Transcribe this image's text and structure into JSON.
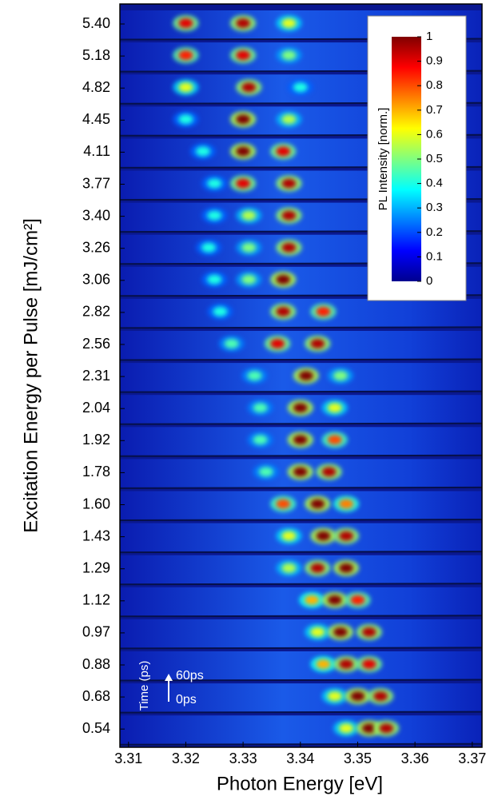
{
  "chart_data": {
    "type": "streak-heatmap",
    "xlabel": "Photon Energy [eV]",
    "ylabel": "Excitation Energy per Pulse [mJ/cm²]",
    "xlim": [
      3.3085,
      3.3717
    ],
    "xticks": [
      3.31,
      3.32,
      3.33,
      3.34,
      3.35,
      3.36,
      3.37
    ],
    "categories": [
      "5.40",
      "5.18",
      "4.82",
      "4.45",
      "4.11",
      "3.77",
      "3.40",
      "3.26",
      "3.06",
      "2.82",
      "2.56",
      "2.31",
      "2.04",
      "1.92",
      "1.78",
      "1.60",
      "1.43",
      "1.29",
      "1.12",
      "0.97",
      "0.88",
      "0.68",
      "0.54"
    ],
    "spots": [
      [
        {
          "energy": 3.32,
          "intensity": 0.9
        },
        {
          "energy": 3.33,
          "intensity": 0.95
        },
        {
          "energy": 3.338,
          "intensity": 0.6
        }
      ],
      [
        {
          "energy": 3.32,
          "intensity": 0.85
        },
        {
          "energy": 3.33,
          "intensity": 0.9
        },
        {
          "energy": 3.338,
          "intensity": 0.5
        }
      ],
      [
        {
          "energy": 3.32,
          "intensity": 0.6
        },
        {
          "energy": 3.331,
          "intensity": 0.95
        },
        {
          "energy": 3.34,
          "intensity": 0.4
        }
      ],
      [
        {
          "energy": 3.32,
          "intensity": 0.4
        },
        {
          "energy": 3.33,
          "intensity": 1
        },
        {
          "energy": 3.338,
          "intensity": 0.55
        }
      ],
      [
        {
          "energy": 3.323,
          "intensity": 0.4
        },
        {
          "energy": 3.33,
          "intensity": 1
        },
        {
          "energy": 3.337,
          "intensity": 0.9
        }
      ],
      [
        {
          "energy": 3.325,
          "intensity": 0.4
        },
        {
          "energy": 3.33,
          "intensity": 0.9
        },
        {
          "energy": 3.338,
          "intensity": 0.95
        }
      ],
      [
        {
          "energy": 3.325,
          "intensity": 0.4
        },
        {
          "energy": 3.331,
          "intensity": 0.55
        },
        {
          "energy": 3.338,
          "intensity": 0.95
        }
      ],
      [
        {
          "energy": 3.324,
          "intensity": 0.4
        },
        {
          "energy": 3.331,
          "intensity": 0.5
        },
        {
          "energy": 3.338,
          "intensity": 0.95
        }
      ],
      [
        {
          "energy": 3.325,
          "intensity": 0.4
        },
        {
          "energy": 3.331,
          "intensity": 0.5
        },
        {
          "energy": 3.337,
          "intensity": 1
        }
      ],
      [
        {
          "energy": 3.326,
          "intensity": 0.4
        },
        {
          "energy": 3.337,
          "intensity": 0.95
        },
        {
          "energy": 3.344,
          "intensity": 0.85
        }
      ],
      [
        {
          "energy": 3.328,
          "intensity": 0.45
        },
        {
          "energy": 3.336,
          "intensity": 0.9
        },
        {
          "energy": 3.343,
          "intensity": 0.95
        }
      ],
      [
        {
          "energy": 3.332,
          "intensity": 0.45
        },
        {
          "energy": 3.341,
          "intensity": 1
        },
        {
          "energy": 3.347,
          "intensity": 0.5
        }
      ],
      [
        {
          "energy": 3.333,
          "intensity": 0.45
        },
        {
          "energy": 3.34,
          "intensity": 1
        },
        {
          "energy": 3.346,
          "intensity": 0.6
        }
      ],
      [
        {
          "energy": 3.333,
          "intensity": 0.45
        },
        {
          "energy": 3.34,
          "intensity": 1
        },
        {
          "energy": 3.346,
          "intensity": 0.8
        }
      ],
      [
        {
          "energy": 3.334,
          "intensity": 0.45
        },
        {
          "energy": 3.34,
          "intensity": 1
        },
        {
          "energy": 3.345,
          "intensity": 0.95
        }
      ],
      [
        {
          "energy": 3.337,
          "intensity": 0.8
        },
        {
          "energy": 3.343,
          "intensity": 1
        },
        {
          "energy": 3.348,
          "intensity": 0.75
        }
      ],
      [
        {
          "energy": 3.338,
          "intensity": 0.6
        },
        {
          "energy": 3.344,
          "intensity": 1
        },
        {
          "energy": 3.348,
          "intensity": 0.95
        }
      ],
      [
        {
          "energy": 3.338,
          "intensity": 0.55
        },
        {
          "energy": 3.343,
          "intensity": 0.95
        },
        {
          "energy": 3.348,
          "intensity": 1
        }
      ],
      [
        {
          "energy": 3.342,
          "intensity": 0.7
        },
        {
          "energy": 3.346,
          "intensity": 1
        },
        {
          "energy": 3.35,
          "intensity": 0.85
        }
      ],
      [
        {
          "energy": 3.343,
          "intensity": 0.6
        },
        {
          "energy": 3.347,
          "intensity": 1
        },
        {
          "energy": 3.352,
          "intensity": 0.95
        }
      ],
      [
        {
          "energy": 3.344,
          "intensity": 0.7
        },
        {
          "energy": 3.348,
          "intensity": 0.95
        },
        {
          "energy": 3.352,
          "intensity": 0.9
        }
      ],
      [
        {
          "energy": 3.346,
          "intensity": 0.6
        },
        {
          "energy": 3.35,
          "intensity": 1
        },
        {
          "energy": 3.354,
          "intensity": 0.95
        }
      ],
      [
        {
          "energy": 3.348,
          "intensity": 0.6
        },
        {
          "energy": 3.352,
          "intensity": 1
        },
        {
          "energy": 3.355,
          "intensity": 0.95
        }
      ]
    ],
    "colorbar": {
      "label": "PL Intensity [norm.]",
      "clim": [
        0,
        1
      ],
      "ticks": [
        0,
        0.1,
        0.2,
        0.3,
        0.4,
        0.5,
        0.6,
        0.7,
        0.8,
        0.9,
        1
      ]
    },
    "annotations": {
      "time_axis": "Time (ps)",
      "end": "60ps",
      "start": "0ps"
    }
  }
}
